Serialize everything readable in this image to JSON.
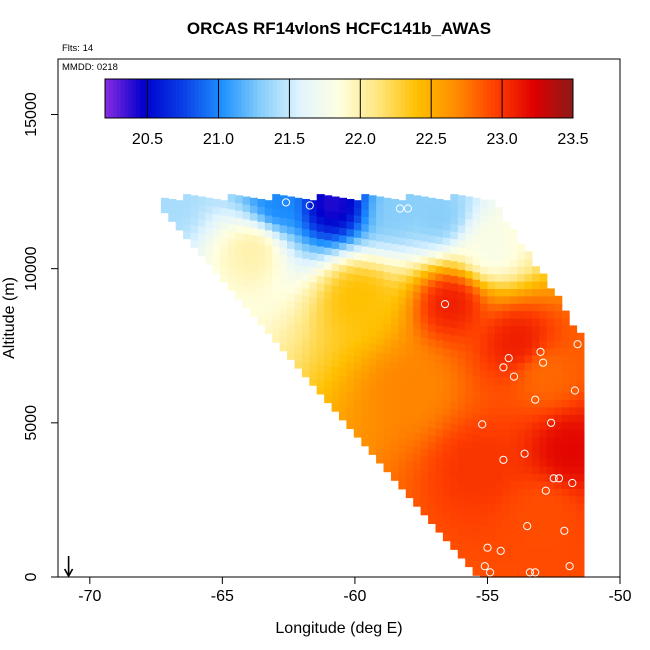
{
  "chart_data": {
    "type": "heatmap",
    "title": "ORCAS RF14vlonS HCFC141b_AWAS",
    "subtitle_flts": "Flts: 14",
    "subtitle_mmdd": "MMDD: 0218",
    "xlabel": "Longitude (deg E)",
    "ylabel": "Altitude (m)",
    "xlim": [
      -71.2,
      -50
    ],
    "ylim": [
      0,
      16800
    ],
    "x_ticks": [
      -70,
      -65,
      -60,
      -55,
      -50
    ],
    "x_tick_labels": [
      "-70",
      "-65",
      "-60",
      "-55",
      "-50"
    ],
    "y_ticks": [
      0,
      5000,
      10000,
      15000
    ],
    "y_tick_labels": [
      "0",
      "5000",
      "10000",
      "15000"
    ],
    "colorbar": {
      "range": [
        20.2,
        23.5
      ],
      "ticks": [
        20.5,
        21.0,
        21.5,
        22.0,
        22.5,
        23.0,
        23.5
      ],
      "tick_labels": [
        "20.5",
        "21.0",
        "21.5",
        "22.0",
        "22.5",
        "23.0",
        "23.5"
      ],
      "colors": [
        "#8a2be2",
        "#0000cc",
        "#0a3fe6",
        "#1e90ff",
        "#87cefa",
        "#e0f4ff",
        "#ffffe0",
        "#ffe680",
        "#ffc000",
        "#ff8c00",
        "#ff4000",
        "#e00000",
        "#8b1a1a"
      ]
    },
    "field_regions": [
      {
        "lon": -67.3,
        "alt": 12100,
        "value": 21.4
      },
      {
        "lon": -63.0,
        "alt": 12000,
        "value": 21.0
      },
      {
        "lon": -61.0,
        "alt": 12000,
        "value": 20.4
      },
      {
        "lon": -58.5,
        "alt": 11800,
        "value": 21.3
      },
      {
        "lon": -57.0,
        "alt": 11600,
        "value": 21.3
      },
      {
        "lon": -55.0,
        "alt": 10500,
        "value": 21.8
      },
      {
        "lon": -64.0,
        "alt": 10500,
        "value": 22.0
      },
      {
        "lon": -60.0,
        "alt": 9000,
        "value": 22.4
      },
      {
        "lon": -58.0,
        "alt": 6000,
        "value": 22.7
      },
      {
        "lon": -56.5,
        "alt": 8800,
        "value": 23.1
      },
      {
        "lon": -54.0,
        "alt": 7500,
        "value": 23.1
      },
      {
        "lon": -53.0,
        "alt": 6500,
        "value": 22.8
      },
      {
        "lon": -55.5,
        "alt": 3500,
        "value": 23.0
      },
      {
        "lon": -53.0,
        "alt": 2000,
        "value": 22.9
      },
      {
        "lon": -52.0,
        "alt": 4000,
        "value": 23.2
      }
    ],
    "sample_points": [
      {
        "lon": -67.5,
        "alt": 12200
      },
      {
        "lon": -62.6,
        "alt": 12150
      },
      {
        "lon": -61.7,
        "alt": 12050
      },
      {
        "lon": -58.3,
        "alt": 11950
      },
      {
        "lon": -58.0,
        "alt": 11950
      },
      {
        "lon": -56.6,
        "alt": 8850
      },
      {
        "lon": -54.2,
        "alt": 7100
      },
      {
        "lon": -54.4,
        "alt": 6800
      },
      {
        "lon": -53.0,
        "alt": 7300
      },
      {
        "lon": -52.9,
        "alt": 6950
      },
      {
        "lon": -51.6,
        "alt": 7550
      },
      {
        "lon": -54.0,
        "alt": 6500
      },
      {
        "lon": -51.7,
        "alt": 6050
      },
      {
        "lon": -53.2,
        "alt": 5750
      },
      {
        "lon": -55.2,
        "alt": 4950
      },
      {
        "lon": -52.6,
        "alt": 5000
      },
      {
        "lon": -53.6,
        "alt": 4000
      },
      {
        "lon": -54.4,
        "alt": 3800
      },
      {
        "lon": -52.5,
        "alt": 3200
      },
      {
        "lon": -52.3,
        "alt": 3200
      },
      {
        "lon": -51.8,
        "alt": 3050
      },
      {
        "lon": -52.8,
        "alt": 2800
      },
      {
        "lon": -53.5,
        "alt": 1650
      },
      {
        "lon": -52.1,
        "alt": 1500
      },
      {
        "lon": -55.0,
        "alt": 950
      },
      {
        "lon": -54.5,
        "alt": 850
      },
      {
        "lon": -55.1,
        "alt": 350
      },
      {
        "lon": -51.9,
        "alt": 350
      },
      {
        "lon": -54.9,
        "alt": 150
      },
      {
        "lon": -53.2,
        "alt": 150
      },
      {
        "lon": -53.4,
        "alt": 150
      }
    ],
    "marker_lon": -70.8,
    "grid": false,
    "legend": "top"
  }
}
